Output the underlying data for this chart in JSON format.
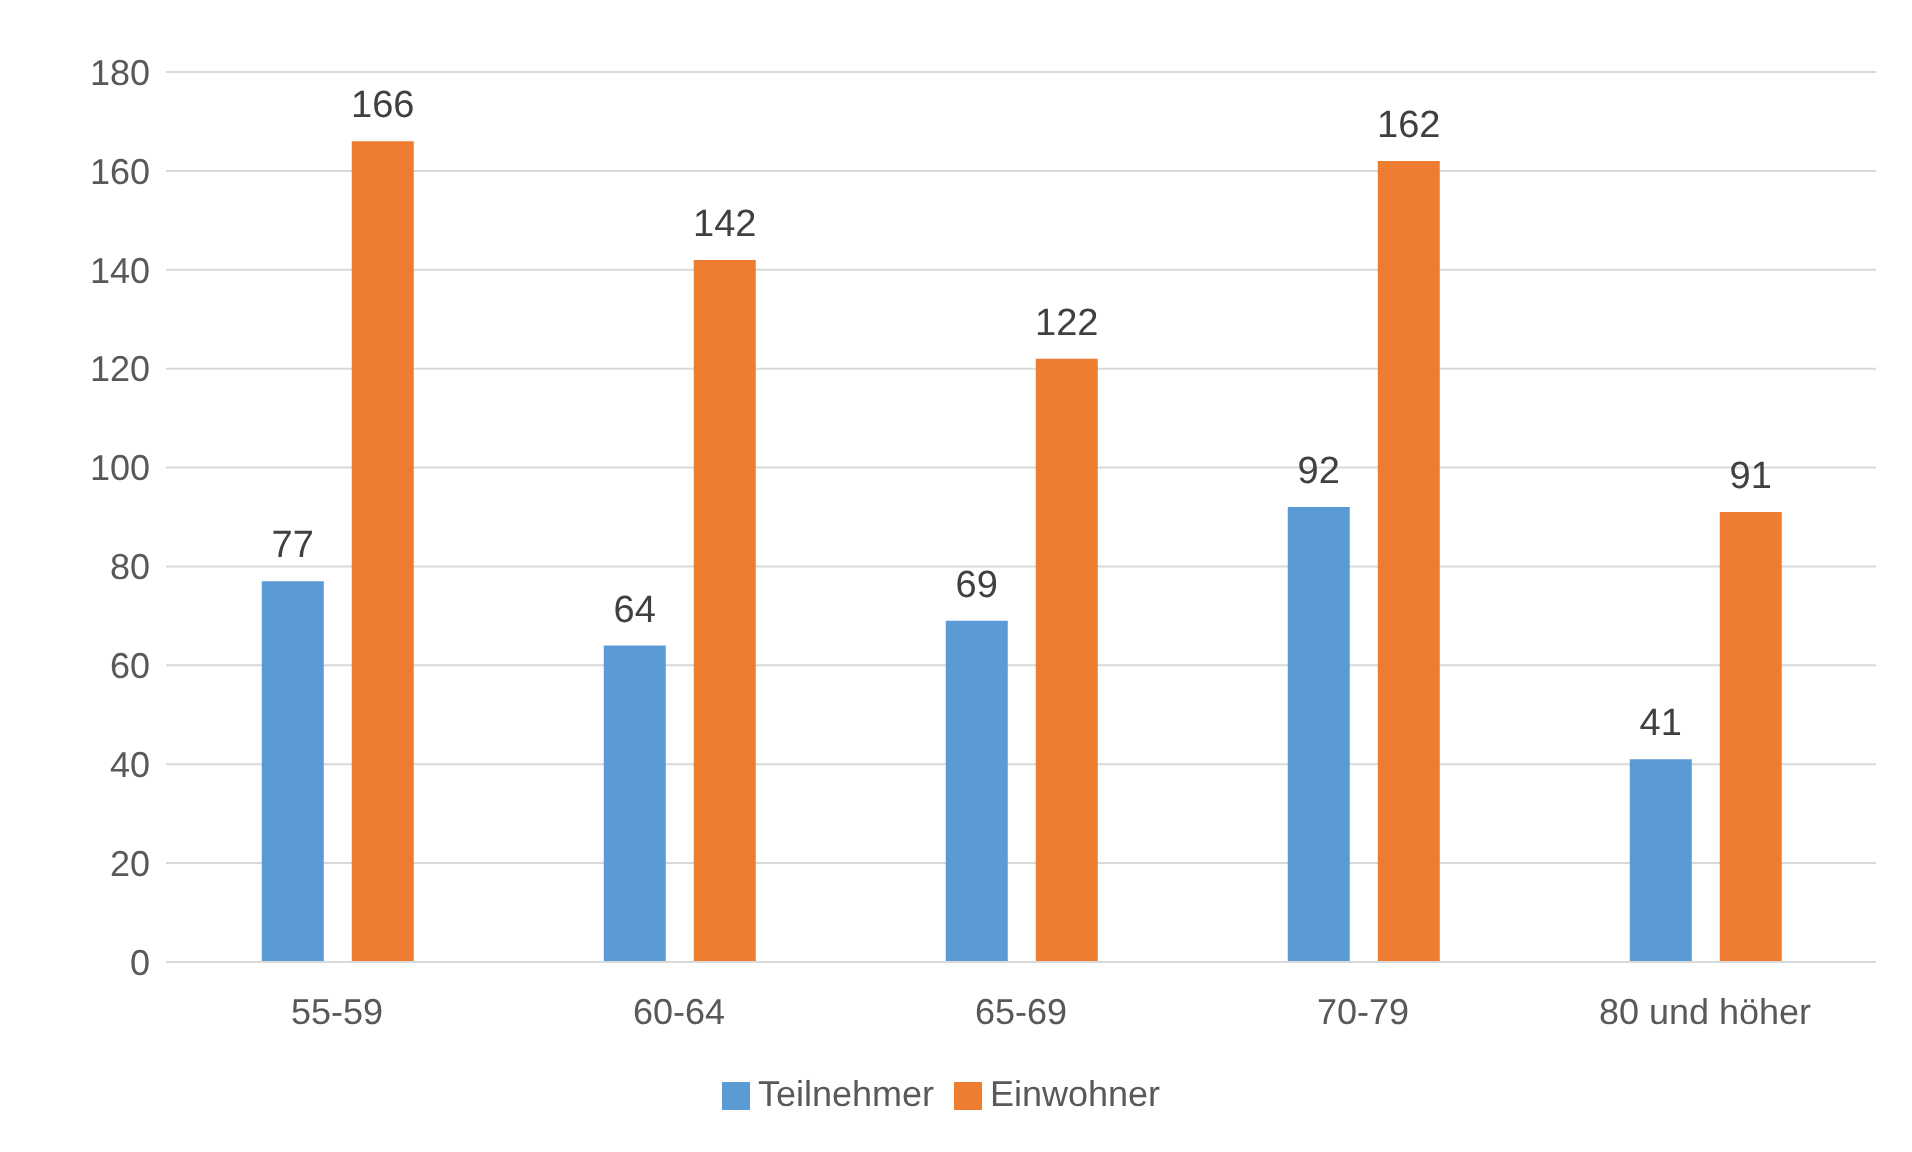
{
  "chart_data": {
    "type": "bar",
    "categories": [
      "55-59",
      "60-64",
      "65-69",
      "70-79",
      "80 und höher"
    ],
    "series": [
      {
        "name": "Teilnehmer",
        "color": "#5b9bd5",
        "values": [
          77,
          64,
          69,
          92,
          41
        ]
      },
      {
        "name": "Einwohner",
        "color": "#ed7d31",
        "values": [
          166,
          142,
          122,
          162,
          91
        ]
      }
    ],
    "ylim": [
      0,
      180
    ],
    "yticks": [
      0,
      20,
      40,
      60,
      80,
      100,
      120,
      140,
      160,
      180
    ],
    "grid": "y",
    "legend": "bottom",
    "data_labels": true
  }
}
